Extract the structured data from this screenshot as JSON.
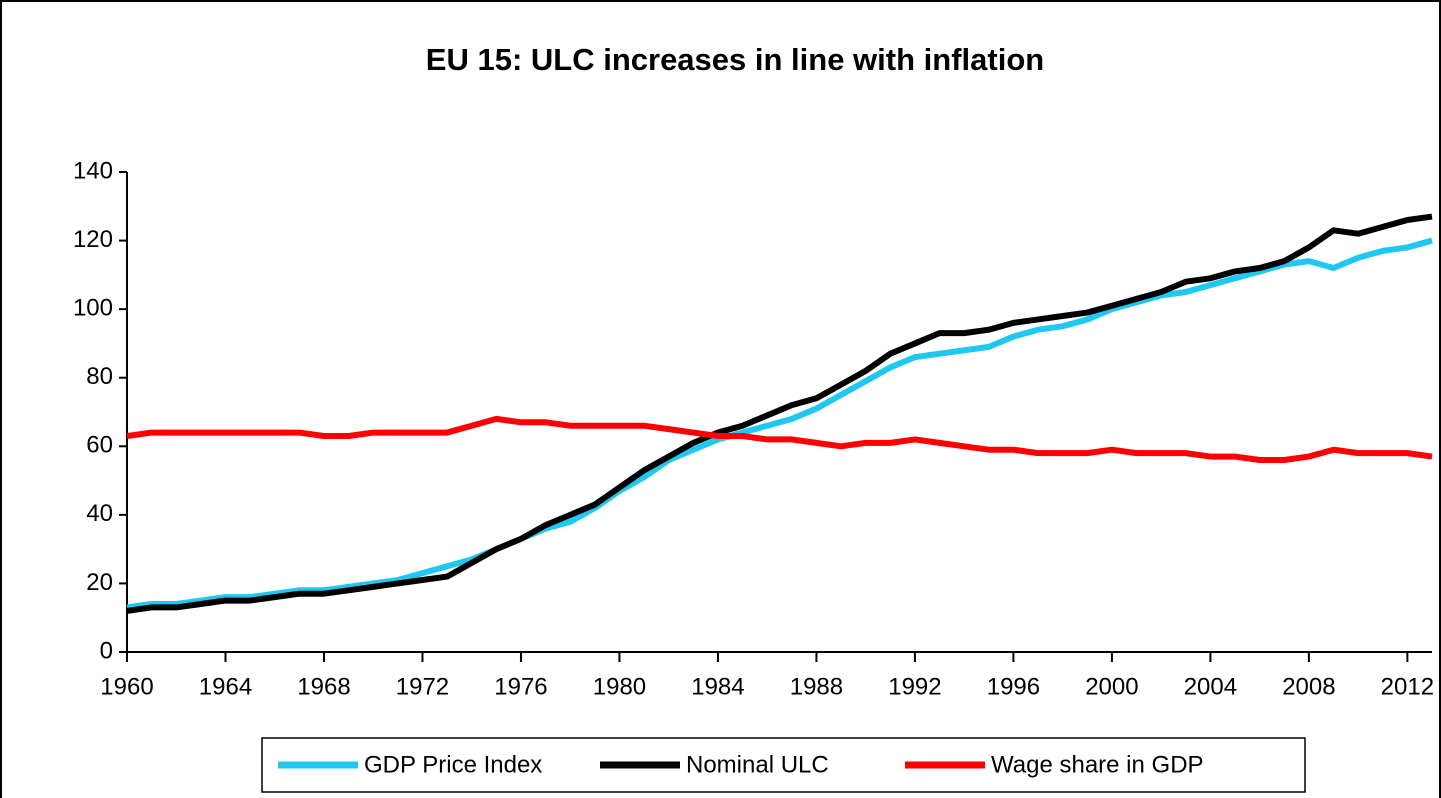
{
  "chart_data": {
    "type": "line",
    "title": "EU 15: ULC increases in line with inflation",
    "x": [
      1960,
      1961,
      1962,
      1963,
      1964,
      1965,
      1966,
      1967,
      1968,
      1969,
      1970,
      1971,
      1972,
      1973,
      1974,
      1975,
      1976,
      1977,
      1978,
      1979,
      1980,
      1981,
      1982,
      1983,
      1984,
      1985,
      1986,
      1987,
      1988,
      1989,
      1990,
      1991,
      1992,
      1993,
      1994,
      1995,
      1996,
      1997,
      1998,
      1999,
      2000,
      2001,
      2002,
      2003,
      2004,
      2005,
      2006,
      2007,
      2008,
      2009,
      2010,
      2011,
      2012,
      2013
    ],
    "series": [
      {
        "name": "GDP Price Index",
        "color": "#1fc8f0",
        "values": [
          13,
          14,
          14,
          15,
          16,
          16,
          17,
          18,
          18,
          19,
          20,
          21,
          23,
          25,
          27,
          30,
          33,
          36,
          38,
          42,
          47,
          51,
          56,
          59,
          62,
          64,
          66,
          68,
          71,
          75,
          79,
          83,
          86,
          87,
          88,
          89,
          92,
          94,
          95,
          97,
          100,
          102,
          104,
          105,
          107,
          109,
          111,
          113,
          114,
          112,
          115,
          117,
          118,
          120
        ]
      },
      {
        "name": "Nominal ULC",
        "color": "#000000",
        "values": [
          12,
          13,
          13,
          14,
          15,
          15,
          16,
          17,
          17,
          18,
          19,
          20,
          21,
          22,
          26,
          30,
          33,
          37,
          40,
          43,
          48,
          53,
          57,
          61,
          64,
          66,
          69,
          72,
          74,
          78,
          82,
          87,
          90,
          93,
          93,
          94,
          96,
          97,
          98,
          99,
          101,
          103,
          105,
          108,
          109,
          111,
          112,
          114,
          118,
          123,
          122,
          124,
          126,
          127
        ]
      },
      {
        "name": "Wage share in GDP",
        "color": "#ff0000",
        "values": [
          63,
          64,
          64,
          64,
          64,
          64,
          64,
          64,
          63,
          63,
          64,
          64,
          64,
          64,
          66,
          68,
          67,
          67,
          66,
          66,
          66,
          66,
          65,
          64,
          63,
          63,
          62,
          62,
          61,
          60,
          61,
          61,
          62,
          61,
          60,
          59,
          59,
          58,
          58,
          58,
          59,
          58,
          58,
          58,
          57,
          57,
          56,
          56,
          57,
          59,
          58,
          58,
          58,
          57
        ]
      }
    ],
    "xlim": [
      1960,
      2013
    ],
    "xticks": [
      1960,
      1964,
      1968,
      1972,
      1976,
      1980,
      1984,
      1988,
      1992,
      1996,
      2000,
      2004,
      2008,
      2012
    ],
    "ylim": [
      0,
      140
    ],
    "yticks": [
      0,
      20,
      40,
      60,
      80,
      100,
      120,
      140
    ],
    "grid": false,
    "legend": "bottom"
  }
}
